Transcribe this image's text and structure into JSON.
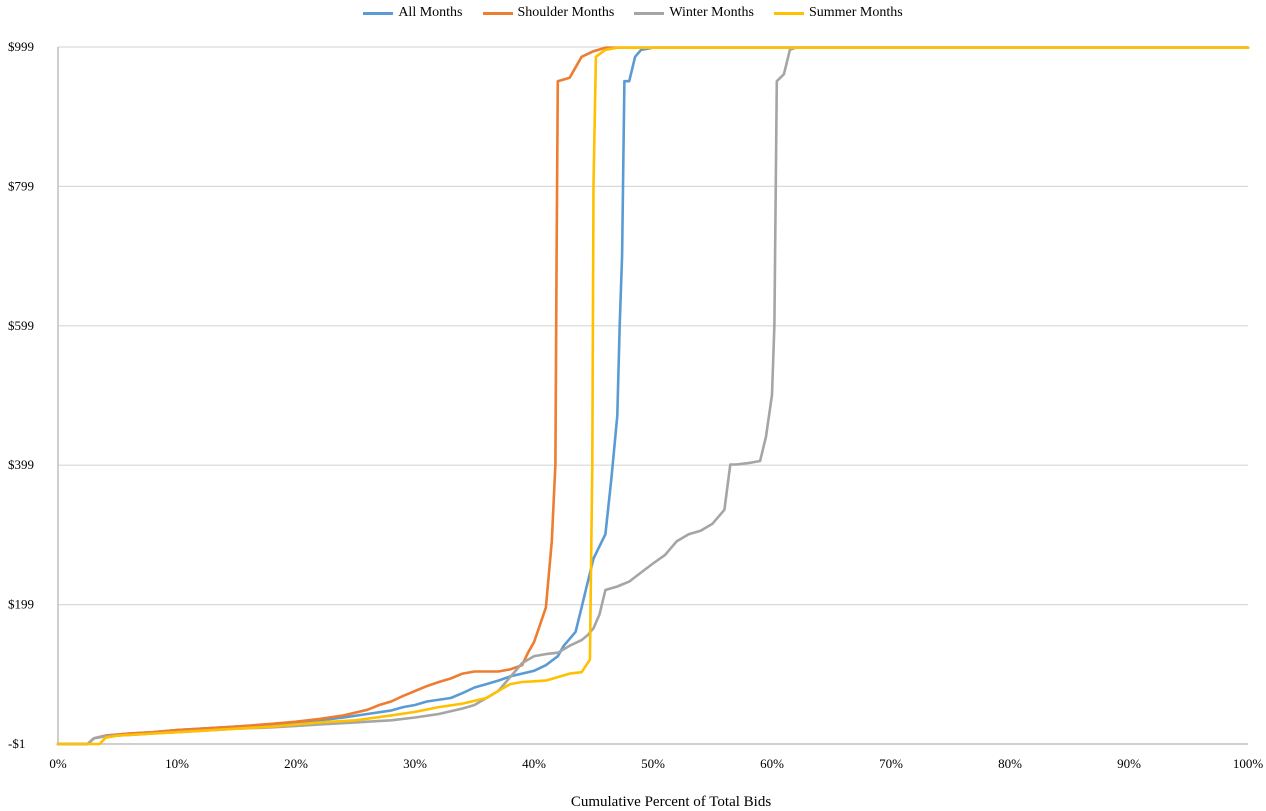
{
  "chart_data": {
    "type": "line",
    "title": "",
    "xlabel": "Cumulative Percent of Total Bids",
    "ylabel": "",
    "x_tick_labels": [
      "0%",
      "10%",
      "20%",
      "30%",
      "40%",
      "50%",
      "60%",
      "70%",
      "80%",
      "90%",
      "100%"
    ],
    "y_tick_labels": [
      "-$1",
      "$199",
      "$399",
      "$599",
      "$799",
      "$999"
    ],
    "x_ticks": [
      0,
      10,
      20,
      30,
      40,
      50,
      60,
      70,
      80,
      90,
      100
    ],
    "y_ticks": [
      -1,
      199,
      399,
      599,
      799,
      999
    ],
    "xlim": [
      0,
      100
    ],
    "ylim": [
      -1,
      999
    ],
    "grid": "horizontal",
    "legend_position": "top",
    "series": [
      {
        "name": "All Months",
        "color": "#5b9bd5",
        "points": [
          [
            0,
            -1
          ],
          [
            2.5,
            -1
          ],
          [
            3,
            7
          ],
          [
            4,
            11
          ],
          [
            6,
            14
          ],
          [
            8,
            16
          ],
          [
            10,
            19
          ],
          [
            12,
            21
          ],
          [
            15,
            24
          ],
          [
            18,
            27
          ],
          [
            20,
            30
          ],
          [
            22,
            33
          ],
          [
            24,
            37
          ],
          [
            26,
            42
          ],
          [
            28,
            47
          ],
          [
            29,
            52
          ],
          [
            30,
            55
          ],
          [
            31,
            60
          ],
          [
            33,
            65
          ],
          [
            34,
            72
          ],
          [
            35,
            80
          ],
          [
            36,
            85
          ],
          [
            37,
            90
          ],
          [
            38,
            96
          ],
          [
            39,
            100
          ],
          [
            40,
            104
          ],
          [
            41,
            112
          ],
          [
            42,
            125
          ],
          [
            42.5,
            140
          ],
          [
            43,
            150
          ],
          [
            43.5,
            160
          ],
          [
            44,
            195
          ],
          [
            44.5,
            230
          ],
          [
            45,
            265
          ],
          [
            46,
            300
          ],
          [
            46.5,
            380
          ],
          [
            47,
            470
          ],
          [
            47.2,
            600
          ],
          [
            47.4,
            700
          ],
          [
            47.6,
            950
          ],
          [
            48,
            950
          ],
          [
            48.5,
            985
          ],
          [
            49,
            995
          ],
          [
            50,
            998
          ],
          [
            100,
            998
          ]
        ]
      },
      {
        "name": "Shoulder Months",
        "color": "#ed7d31",
        "points": [
          [
            0,
            -1
          ],
          [
            2.5,
            -1
          ],
          [
            3,
            7
          ],
          [
            4,
            11
          ],
          [
            6,
            14
          ],
          [
            8,
            16
          ],
          [
            10,
            19
          ],
          [
            12,
            21
          ],
          [
            15,
            24
          ],
          [
            18,
            28
          ],
          [
            20,
            31
          ],
          [
            22,
            35
          ],
          [
            24,
            40
          ],
          [
            26,
            48
          ],
          [
            27,
            55
          ],
          [
            28,
            60
          ],
          [
            29,
            68
          ],
          [
            30,
            75
          ],
          [
            31,
            82
          ],
          [
            32,
            88
          ],
          [
            33,
            93
          ],
          [
            34,
            100
          ],
          [
            35,
            103
          ],
          [
            37,
            103
          ],
          [
            38,
            106
          ],
          [
            39,
            112
          ],
          [
            39.5,
            130
          ],
          [
            40,
            145
          ],
          [
            40.5,
            170
          ],
          [
            41,
            195
          ],
          [
            41.5,
            290
          ],
          [
            41.8,
            400
          ],
          [
            41.9,
            700
          ],
          [
            42,
            950
          ],
          [
            43,
            955
          ],
          [
            44,
            985
          ],
          [
            45,
            993
          ],
          [
            46,
            998
          ],
          [
            100,
            998
          ]
        ]
      },
      {
        "name": "Winter Months",
        "color": "#a5a5a5",
        "points": [
          [
            0,
            -1
          ],
          [
            2.5,
            -1
          ],
          [
            3,
            7
          ],
          [
            4,
            10
          ],
          [
            6,
            12
          ],
          [
            8,
            14
          ],
          [
            10,
            16
          ],
          [
            12,
            18
          ],
          [
            15,
            21
          ],
          [
            18,
            23
          ],
          [
            20,
            25
          ],
          [
            22,
            27
          ],
          [
            25,
            30
          ],
          [
            28,
            33
          ],
          [
            30,
            37
          ],
          [
            32,
            42
          ],
          [
            34,
            50
          ],
          [
            35,
            55
          ],
          [
            36,
            65
          ],
          [
            37,
            75
          ],
          [
            38,
            95
          ],
          [
            39,
            115
          ],
          [
            40,
            125
          ],
          [
            41,
            128
          ],
          [
            42,
            130
          ],
          [
            43,
            140
          ],
          [
            44,
            148
          ],
          [
            44.5,
            155
          ],
          [
            45,
            165
          ],
          [
            45.5,
            185
          ],
          [
            46,
            220
          ],
          [
            47,
            225
          ],
          [
            48,
            232
          ],
          [
            49,
            245
          ],
          [
            50,
            258
          ],
          [
            51,
            270
          ],
          [
            52,
            290
          ],
          [
            53,
            300
          ],
          [
            54,
            305
          ],
          [
            55,
            315
          ],
          [
            56,
            335
          ],
          [
            56.5,
            400
          ],
          [
            57,
            400
          ],
          [
            58,
            402
          ],
          [
            59,
            405
          ],
          [
            59.5,
            440
          ],
          [
            60,
            500
          ],
          [
            60.2,
            600
          ],
          [
            60.4,
            950
          ],
          [
            61,
            960
          ],
          [
            61.5,
            995
          ],
          [
            62,
            998
          ],
          [
            100,
            998
          ]
        ]
      },
      {
        "name": "Summer Months",
        "color": "#ffc000",
        "points": [
          [
            0,
            -1
          ],
          [
            3.5,
            -1
          ],
          [
            4,
            8
          ],
          [
            5,
            11
          ],
          [
            8,
            14
          ],
          [
            10,
            16
          ],
          [
            12,
            18
          ],
          [
            15,
            21
          ],
          [
            18,
            24
          ],
          [
            20,
            27
          ],
          [
            22,
            30
          ],
          [
            25,
            33
          ],
          [
            28,
            40
          ],
          [
            30,
            45
          ],
          [
            32,
            52
          ],
          [
            34,
            57
          ],
          [
            36,
            65
          ],
          [
            37,
            75
          ],
          [
            38,
            85
          ],
          [
            39,
            88
          ],
          [
            40,
            89
          ],
          [
            41,
            90
          ],
          [
            42,
            95
          ],
          [
            43,
            100
          ],
          [
            44,
            102
          ],
          [
            44.7,
            120
          ],
          [
            44.9,
            400
          ],
          [
            45,
            800
          ],
          [
            45.2,
            985
          ],
          [
            46,
            995
          ],
          [
            47,
            998
          ],
          [
            100,
            998
          ]
        ]
      }
    ]
  }
}
